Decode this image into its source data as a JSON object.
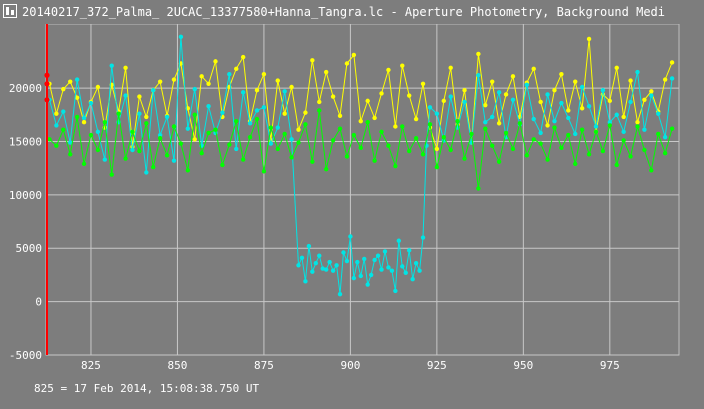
{
  "window": {
    "title": "20140217_372_Palma_ 2UCAC_13377580+Hanna_Tangra.lc - Aperture Photometry, Background Medi"
  },
  "status": {
    "text": "825 = 17 Feb 2014, 15:08:38.750 UT"
  },
  "chart_data": {
    "type": "line",
    "xlim": [
      812,
      995
    ],
    "ylim": [
      -5000,
      26000
    ],
    "x_ticks": [
      825,
      850,
      875,
      900,
      925,
      950,
      975
    ],
    "y_ticks": [
      -5000,
      0,
      5000,
      10000,
      15000,
      20000
    ],
    "grid": true,
    "cursor_x": 812,
    "series": [
      {
        "color": "#ffff00",
        "x": [
          813,
          815,
          817,
          819,
          821,
          823,
          825,
          827,
          829,
          831,
          833,
          835,
          837,
          839,
          841,
          843,
          845,
          847,
          849,
          851,
          853,
          855,
          857,
          859,
          861,
          863,
          865,
          867,
          869,
          871,
          873,
          875,
          877,
          879,
          881,
          883,
          885,
          887,
          889,
          891,
          893,
          895,
          897,
          899,
          901,
          903,
          905,
          907,
          909,
          911,
          913,
          915,
          917,
          919,
          921,
          923,
          925,
          927,
          929,
          931,
          933,
          935,
          937,
          939,
          941,
          943,
          945,
          947,
          949,
          951,
          953,
          955,
          957,
          959,
          961,
          963,
          965,
          967,
          969,
          971,
          973,
          975,
          977,
          979,
          981,
          983,
          985,
          987,
          989,
          991,
          993
        ],
        "values": [
          20400,
          17600,
          19900,
          20600,
          19100,
          16800,
          18700,
          20100,
          16300,
          20300,
          17800,
          21900,
          14500,
          19200,
          17300,
          19800,
          20600,
          17400,
          20800,
          22300,
          18100,
          15200,
          21100,
          20400,
          22500,
          17300,
          20100,
          21800,
          22900,
          16900,
          19800,
          21300,
          15100,
          20700,
          17600,
          20100,
          16100,
          17700,
          22600,
          18700,
          21500,
          19200,
          17400,
          22300,
          23100,
          16900,
          18800,
          17200,
          19500,
          21700,
          16400,
          22100,
          19300,
          17100,
          20400,
          16300,
          14300,
          18800,
          21900,
          16600,
          19800,
          14900,
          23200,
          18400,
          20600,
          16700,
          19400,
          21100,
          17300,
          20500,
          21800,
          18700,
          16500,
          19800,
          21300,
          17900,
          20600,
          18100,
          24600,
          15900,
          19400,
          18800,
          21900,
          17300,
          20700,
          16800,
          18900,
          19700,
          17800,
          20800,
          22400
        ]
      },
      {
        "color": "#00e5e5",
        "x": [
          813,
          815,
          817,
          819,
          821,
          823,
          825,
          827,
          829,
          831,
          833,
          835,
          837,
          839,
          841,
          843,
          845,
          847,
          849,
          851,
          853,
          855,
          857,
          859,
          861,
          863,
          865,
          867,
          869,
          871,
          873,
          875,
          877,
          879,
          881,
          883,
          885,
          886,
          887,
          888,
          889,
          890,
          891,
          892,
          893,
          894,
          895,
          896,
          897,
          898,
          899,
          900,
          901,
          902,
          903,
          904,
          905,
          906,
          907,
          908,
          909,
          910,
          911,
          912,
          913,
          914,
          915,
          916,
          917,
          918,
          919,
          920,
          921,
          922,
          923,
          925,
          927,
          929,
          931,
          933,
          935,
          937,
          939,
          941,
          943,
          945,
          947,
          949,
          951,
          953,
          955,
          957,
          959,
          961,
          963,
          965,
          967,
          969,
          971,
          973,
          975,
          977,
          979,
          981,
          983,
          985,
          987,
          989,
          991,
          993
        ],
        "values": [
          18900,
          16500,
          17800,
          14900,
          20800,
          17200,
          18600,
          15900,
          13300,
          22100,
          16800,
          19300,
          14200,
          17600,
          12100,
          19800,
          15600,
          17300,
          13200,
          24800,
          16200,
          19900,
          14600,
          18300,
          15800,
          17700,
          21300,
          14300,
          19600,
          16700,
          17900,
          18200,
          14800,
          16300,
          19700,
          15200,
          3400,
          4100,
          1900,
          5200,
          2800,
          3600,
          4300,
          3100,
          3000,
          3700,
          2900,
          3400,
          700,
          4600,
          3800,
          6100,
          2200,
          3700,
          2400,
          4000,
          1600,
          2500,
          3900,
          4300,
          3000,
          4700,
          3200,
          2900,
          1000,
          5700,
          3300,
          2700,
          4800,
          2100,
          3600,
          2900,
          6000,
          14600,
          18200,
          17600,
          15100,
          19200,
          16300,
          18700,
          14900,
          21200,
          16800,
          17300,
          19600,
          15400,
          18900,
          16600,
          20300,
          17100,
          15800,
          19400,
          16900,
          18600,
          17200,
          15700,
          20100,
          18300,
          16400,
          19800,
          16800,
          17500,
          15900,
          18700,
          21500,
          16100,
          19300,
          17600,
          15400,
          20900
        ]
      },
      {
        "color": "#00ff00",
        "x": [
          813,
          815,
          817,
          819,
          821,
          823,
          825,
          827,
          829,
          831,
          833,
          835,
          837,
          839,
          841,
          843,
          845,
          847,
          849,
          851,
          853,
          855,
          857,
          859,
          861,
          863,
          865,
          867,
          869,
          871,
          873,
          875,
          877,
          879,
          881,
          883,
          885,
          887,
          889,
          891,
          893,
          895,
          897,
          899,
          901,
          903,
          905,
          907,
          909,
          911,
          913,
          915,
          917,
          919,
          921,
          923,
          925,
          927,
          929,
          931,
          933,
          935,
          937,
          939,
          941,
          943,
          945,
          947,
          949,
          951,
          953,
          955,
          957,
          959,
          961,
          963,
          965,
          967,
          969,
          971,
          973,
          975,
          977,
          979,
          981,
          983,
          985,
          987,
          989,
          991,
          993
        ],
        "values": [
          15200,
          14600,
          16100,
          13800,
          17300,
          12900,
          15600,
          14200,
          16800,
          11900,
          17600,
          13400,
          15900,
          14100,
          16700,
          12600,
          15300,
          13700,
          16400,
          14800,
          12300,
          17500,
          13900,
          15800,
          16100,
          12800,
          14700,
          16900,
          13300,
          15400,
          17100,
          12200,
          16300,
          14300,
          15700,
          13500,
          14900,
          16600,
          13100,
          17900,
          12400,
          15100,
          16200,
          13600,
          15600,
          14400,
          16800,
          13200,
          15900,
          14600,
          12700,
          16400,
          14100,
          15300,
          13800,
          16600,
          12600,
          15400,
          14200,
          16900,
          13400,
          15700,
          10600,
          16200,
          14600,
          13100,
          15800,
          14300,
          16700,
          13700,
          15200,
          14800,
          13300,
          16300,
          14400,
          15600,
          12900,
          16100,
          13800,
          15900,
          14100,
          16500,
          12800,
          15100,
          13600,
          16400,
          14200,
          12300,
          15700,
          13900,
          16200
        ]
      }
    ],
    "markers": [
      {
        "x": 812,
        "y": 21200,
        "color": "#ff0000"
      },
      {
        "x": 812,
        "y": 18900,
        "color": "#ff0000"
      },
      {
        "x": 812,
        "y": 20400,
        "color": "#ff0000"
      }
    ]
  }
}
